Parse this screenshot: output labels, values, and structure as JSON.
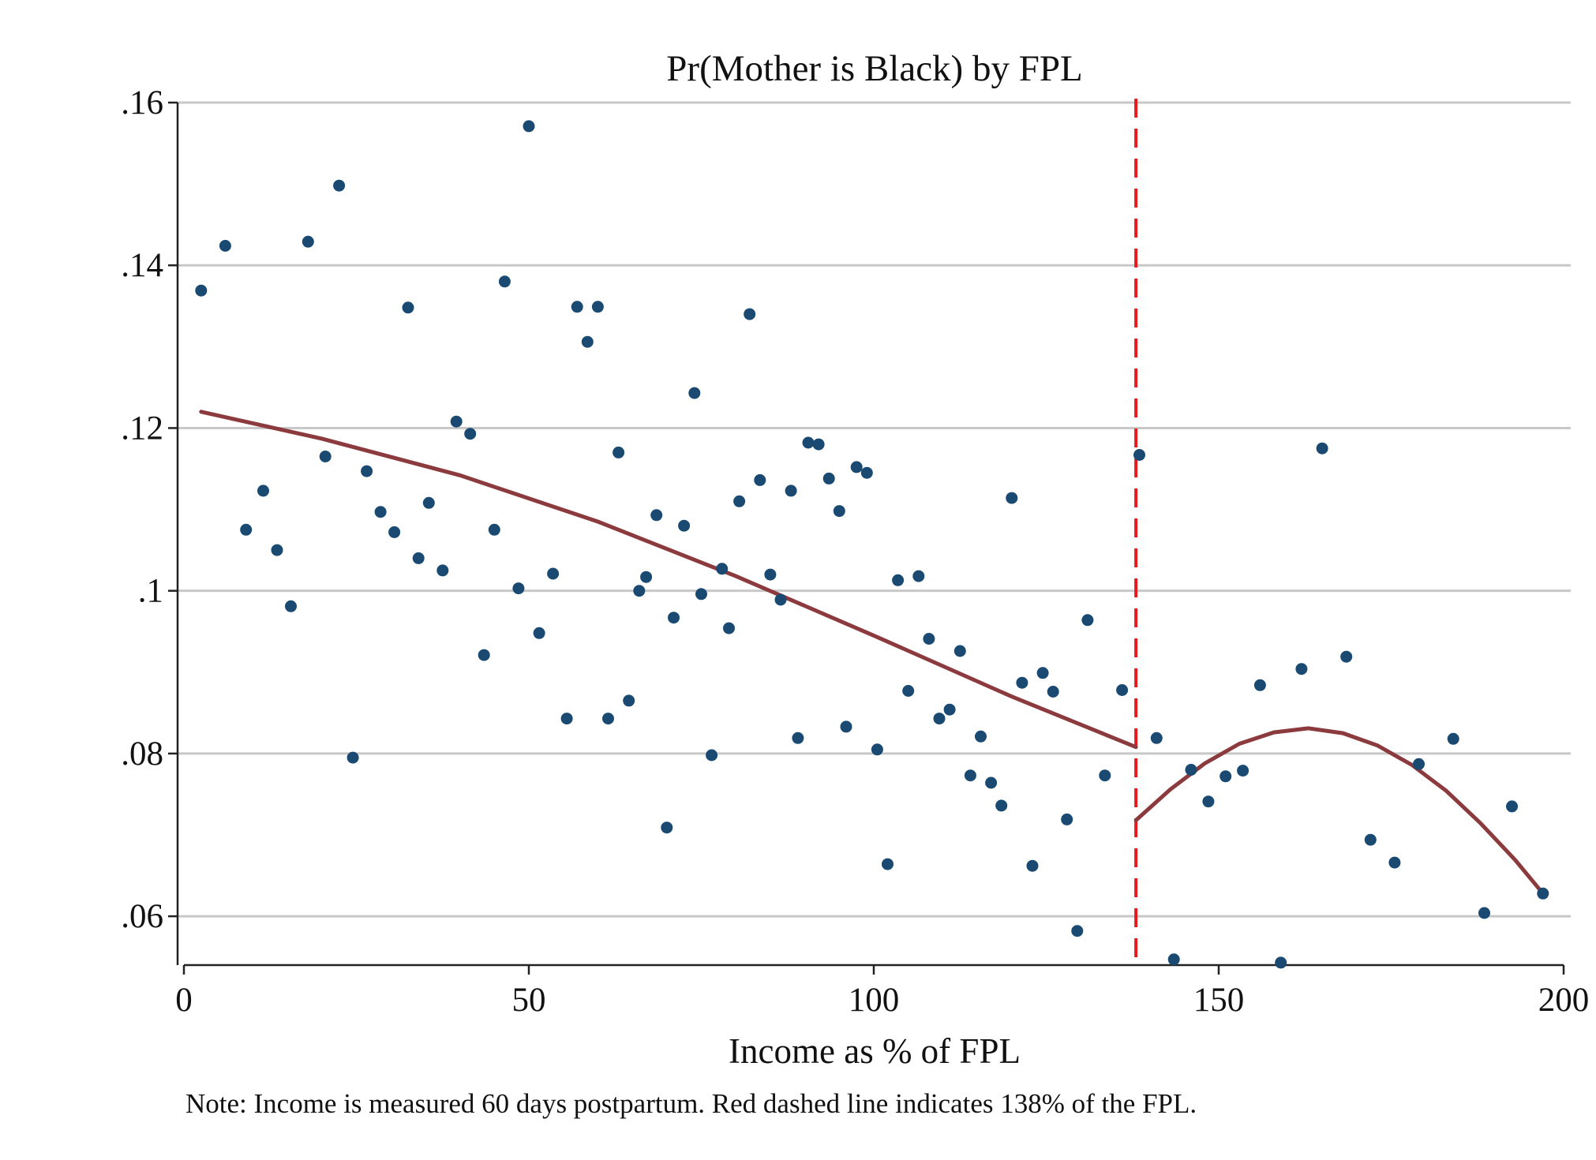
{
  "chart_data": {
    "type": "scatter",
    "title": "Pr(Mother is Black) by FPL",
    "xlabel": "Income as % of FPL",
    "ylabel": "",
    "note": "Note: Income is measured 60 days postpartum. Red dashed line indicates 138% of the FPL.",
    "xlim": [
      0,
      200
    ],
    "ylim": [
      0.054,
      0.16
    ],
    "x_ticks": [
      {
        "value": 0,
        "label": "0"
      },
      {
        "value": 50,
        "label": "50"
      },
      {
        "value": 100,
        "label": "100"
      },
      {
        "value": 150,
        "label": "150"
      },
      {
        "value": 200,
        "label": "200"
      }
    ],
    "y_ticks": [
      {
        "value": 0.06,
        "label": ".06"
      },
      {
        "value": 0.08,
        "label": ".08"
      },
      {
        "value": 0.1,
        "label": ".1"
      },
      {
        "value": 0.12,
        "label": ".12"
      },
      {
        "value": 0.14,
        "label": ".14"
      },
      {
        "value": 0.16,
        "label": ".16"
      }
    ],
    "grid": true,
    "cutoff_x": 138,
    "colors": {
      "points": "#1a4a72",
      "fit": "#8b3a3e",
      "cutoff": "#e41a1c",
      "grid": "#c8c8c8"
    },
    "points": [
      [
        2.5,
        0.1369
      ],
      [
        6,
        0.1424
      ],
      [
        9,
        0.1075
      ],
      [
        11.5,
        0.1123
      ],
      [
        13.5,
        0.105
      ],
      [
        15.5,
        0.0981
      ],
      [
        18,
        0.1429
      ],
      [
        20.5,
        0.1165
      ],
      [
        22.5,
        0.1498
      ],
      [
        24.5,
        0.0795
      ],
      [
        26.5,
        0.1147
      ],
      [
        28.5,
        0.1097
      ],
      [
        30.5,
        0.1072
      ],
      [
        32.5,
        0.1348
      ],
      [
        34,
        0.104
      ],
      [
        35.5,
        0.1108
      ],
      [
        37.5,
        0.1025
      ],
      [
        39.5,
        0.1208
      ],
      [
        41.5,
        0.1193
      ],
      [
        43.5,
        0.0921
      ],
      [
        45,
        0.1075
      ],
      [
        46.5,
        0.138
      ],
      [
        48.5,
        0.1003
      ],
      [
        50,
        0.1571
      ],
      [
        51.5,
        0.0948
      ],
      [
        53.5,
        0.1021
      ],
      [
        55.5,
        0.0843
      ],
      [
        57,
        0.1349
      ],
      [
        58.5,
        0.1306
      ],
      [
        60,
        0.1349
      ],
      [
        61.5,
        0.0843
      ],
      [
        63,
        0.117
      ],
      [
        64.5,
        0.0865
      ],
      [
        66,
        0.1
      ],
      [
        67,
        0.1017
      ],
      [
        68.5,
        0.1093
      ],
      [
        70,
        0.0709
      ],
      [
        71,
        0.0967
      ],
      [
        72.5,
        0.108
      ],
      [
        74,
        0.1243
      ],
      [
        75,
        0.0996
      ],
      [
        76.5,
        0.0798
      ],
      [
        78,
        0.1027
      ],
      [
        79,
        0.0954
      ],
      [
        80.5,
        0.111
      ],
      [
        82,
        0.134
      ],
      [
        83.5,
        0.1136
      ],
      [
        85,
        0.102
      ],
      [
        86.5,
        0.0989
      ],
      [
        88,
        0.1123
      ],
      [
        89,
        0.0819
      ],
      [
        90.5,
        0.1182
      ],
      [
        92,
        0.118
      ],
      [
        93.5,
        0.1138
      ],
      [
        95,
        0.1098
      ],
      [
        96,
        0.0833
      ],
      [
        97.5,
        0.1152
      ],
      [
        99,
        0.1145
      ],
      [
        100.5,
        0.0805
      ],
      [
        102,
        0.0664
      ],
      [
        103.5,
        0.1013
      ],
      [
        105,
        0.0877
      ],
      [
        106.5,
        0.1018
      ],
      [
        108,
        0.0941
      ],
      [
        109.5,
        0.0843
      ],
      [
        111,
        0.0854
      ],
      [
        112.5,
        0.0926
      ],
      [
        114,
        0.0773
      ],
      [
        115.5,
        0.0821
      ],
      [
        117,
        0.0764
      ],
      [
        118.5,
        0.0736
      ],
      [
        120,
        0.1114
      ],
      [
        121.5,
        0.0887
      ],
      [
        123,
        0.0662
      ],
      [
        124.5,
        0.0899
      ],
      [
        126,
        0.0876
      ],
      [
        128,
        0.0719
      ],
      [
        129.5,
        0.0582
      ],
      [
        131,
        0.0964
      ],
      [
        133.5,
        0.0773
      ],
      [
        136,
        0.0878
      ],
      [
        138.5,
        0.1167
      ],
      [
        141,
        0.0819
      ],
      [
        143.5,
        0.0547
      ],
      [
        146,
        0.078
      ],
      [
        148.5,
        0.0741
      ],
      [
        151,
        0.0772
      ],
      [
        153.5,
        0.0779
      ],
      [
        156,
        0.0884
      ],
      [
        159,
        0.0543
      ],
      [
        162,
        0.0904
      ],
      [
        165,
        0.1175
      ],
      [
        168.5,
        0.0919
      ],
      [
        172,
        0.0694
      ],
      [
        175.5,
        0.0666
      ],
      [
        179,
        0.0787
      ],
      [
        184,
        0.0818
      ],
      [
        188.5,
        0.0604
      ],
      [
        192.5,
        0.0735
      ],
      [
        197,
        0.0628
      ]
    ],
    "fit_left": [
      [
        2.5,
        0.122
      ],
      [
        20,
        0.1187
      ],
      [
        40,
        0.1142
      ],
      [
        60,
        0.1085
      ],
      [
        80,
        0.1018
      ],
      [
        100,
        0.0945
      ],
      [
        120,
        0.087
      ],
      [
        138,
        0.0808
      ]
    ],
    "fit_right": [
      [
        138,
        0.0718
      ],
      [
        143,
        0.0756
      ],
      [
        148,
        0.0788
      ],
      [
        153,
        0.0812
      ],
      [
        158,
        0.0826
      ],
      [
        163,
        0.0831
      ],
      [
        168,
        0.0825
      ],
      [
        173,
        0.081
      ],
      [
        178,
        0.0786
      ],
      [
        183,
        0.0754
      ],
      [
        188,
        0.0714
      ],
      [
        193,
        0.0669
      ],
      [
        197,
        0.0628
      ]
    ]
  }
}
